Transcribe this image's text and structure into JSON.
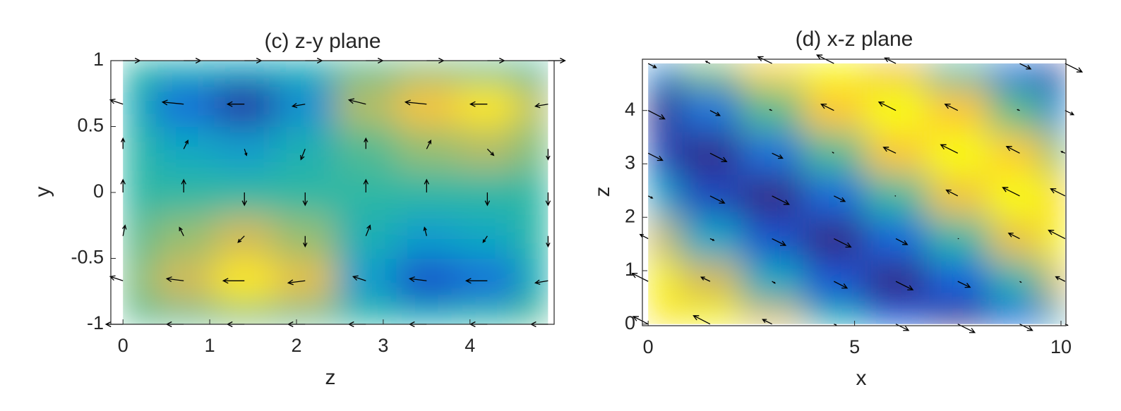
{
  "chart_data": [
    {
      "type": "heatmap",
      "title": "(c) z-y plane",
      "xlabel": "z",
      "ylabel": "y",
      "x": [
        0,
        0.7,
        1.4,
        2.1,
        2.8,
        3.5,
        4.2,
        4.9
      ],
      "y": [
        -1,
        -0.67,
        -0.33,
        0,
        0.33,
        0.67,
        1
      ],
      "z": [
        [
          0.55,
          0.55,
          0.6,
          0.55,
          0.5,
          0.45,
          0.5,
          0.55
        ],
        [
          0.6,
          0.75,
          0.95,
          0.8,
          0.35,
          0.1,
          0.2,
          0.45
        ],
        [
          0.55,
          0.65,
          0.75,
          0.65,
          0.45,
          0.35,
          0.4,
          0.5
        ],
        [
          0.5,
          0.5,
          0.5,
          0.5,
          0.5,
          0.5,
          0.5,
          0.5
        ],
        [
          0.5,
          0.4,
          0.35,
          0.45,
          0.55,
          0.65,
          0.7,
          0.6
        ],
        [
          0.45,
          0.2,
          0.05,
          0.3,
          0.7,
          0.85,
          0.95,
          0.7
        ],
        [
          0.5,
          0.45,
          0.4,
          0.45,
          0.55,
          0.6,
          0.55,
          0.5
        ]
      ],
      "u": [
        [
          -0.4,
          -0.4,
          -0.4,
          -0.4,
          -0.4,
          -0.4,
          -0.4,
          -0.4
        ],
        [
          -0.3,
          -0.4,
          -0.5,
          -0.4,
          -0.3,
          -0.4,
          -0.5,
          -0.3
        ],
        [
          0.05,
          -0.1,
          -0.15,
          0,
          0.1,
          -0.05,
          -0.1,
          0
        ],
        [
          0,
          0,
          0,
          0,
          0,
          0,
          0,
          0
        ],
        [
          0,
          0.1,
          0.05,
          -0.1,
          0,
          0.1,
          0.15,
          0
        ],
        [
          -0.3,
          -0.5,
          -0.4,
          -0.3,
          -0.4,
          -0.5,
          -0.4,
          -0.3
        ],
        [
          0.4,
          0.4,
          0.4,
          0.4,
          0.4,
          0.4,
          0.4,
          0.4
        ]
      ],
      "v": [
        [
          0,
          0,
          0,
          0,
          0,
          0,
          0,
          0
        ],
        [
          0.1,
          0.05,
          0,
          -0.05,
          0.1,
          0.05,
          0,
          -0.05
        ],
        [
          0.25,
          0.2,
          -0.15,
          -0.25,
          0.25,
          0.2,
          -0.15,
          -0.25
        ],
        [
          0.3,
          0.3,
          -0.3,
          -0.3,
          0.3,
          0.3,
          -0.3,
          -0.3
        ],
        [
          0.25,
          0.2,
          -0.15,
          -0.25,
          0.25,
          0.2,
          -0.15,
          -0.25
        ],
        [
          0.1,
          0.05,
          0,
          -0.05,
          0.1,
          0.05,
          0,
          -0.05
        ],
        [
          0,
          0,
          0,
          0,
          0,
          0,
          0,
          0
        ]
      ],
      "clim": [
        0,
        1
      ],
      "colormap": [
        "#352a87",
        "#0f5cdd",
        "#1481d6",
        "#06a4ca",
        "#2eb7a4",
        "#87bf77",
        "#d1bb59",
        "#fec832",
        "#f9fb0e"
      ],
      "arrow_color": "#000000",
      "xlim": [
        -0.14,
        4.97
      ],
      "ylim": [
        -1,
        1
      ],
      "xticks": [
        0,
        1,
        2,
        3,
        4
      ],
      "yticks": [
        -1,
        -0.5,
        0,
        0.5,
        1
      ]
    },
    {
      "type": "heatmap",
      "title": "(d) x-z plane",
      "xlabel": "x",
      "ylabel": "z",
      "x": [
        0,
        1.5,
        3,
        4.5,
        6,
        7.5,
        9,
        10.1
      ],
      "y": [
        0,
        0.8,
        1.6,
        2.4,
        3.2,
        4,
        4.88
      ],
      "z": [
        [
          0.94,
          0.99,
          0.78,
          0.44,
          0.13,
          0,
          0.13,
          0.42
        ],
        [
          0.98,
          0.76,
          0.41,
          0.11,
          0,
          0.14,
          0.46,
          0.78
        ],
        [
          0.74,
          0.39,
          0.1,
          0,
          0.16,
          0.49,
          0.82,
          0.99
        ],
        [
          0.37,
          0.08,
          0,
          0.17,
          0.51,
          0.84,
          1.0,
          0.92
        ],
        [
          0.07,
          0.01,
          0.19,
          0.54,
          0.86,
          1.0,
          0.89,
          0.61
        ],
        [
          0.01,
          0.21,
          0.56,
          0.87,
          1,
          0.87,
          0.56,
          0.25
        ],
        [
          0.26,
          0.62,
          0.91,
          1.0,
          0.83,
          0.5,
          0.17,
          0
        ]
      ],
      "u": [
        [
          -0.35,
          -0.39,
          -0.22,
          0.05,
          0.3,
          0.4,
          0.3,
          0.06
        ],
        [
          -0.38,
          -0.21,
          0.07,
          0.31,
          0.4,
          0.29,
          0.03,
          -0.22
        ],
        [
          -0.19,
          0.09,
          0.32,
          0.4,
          0.27,
          0.01,
          -0.26,
          -0.39
        ],
        [
          0.1,
          0.34,
          0.4,
          0.26,
          -0.01,
          -0.27,
          -0.4,
          -0.34
        ],
        [
          0.34,
          0.39,
          0.25,
          -0.03,
          -0.29,
          -0.4,
          -0.31,
          -0.09
        ],
        [
          0.39,
          0.23,
          -0.05,
          -0.3,
          -0.4,
          -0.3,
          -0.05,
          0.2
        ],
        [
          0.19,
          -0.1,
          -0.33,
          -0.4,
          -0.26,
          0,
          0.26,
          0.4
        ]
      ],
      "v": [
        [
          0.18,
          0.2,
          0.11,
          -0.02,
          -0.15,
          -0.2,
          -0.15,
          -0.03
        ],
        [
          0.19,
          0.1,
          -0.04,
          -0.16,
          -0.2,
          -0.14,
          -0.02,
          0.11
        ],
        [
          0.1,
          -0.04,
          -0.16,
          -0.2,
          -0.14,
          0,
          0.13,
          0.2
        ],
        [
          -0.05,
          -0.17,
          -0.2,
          -0.13,
          0,
          0.14,
          0.2,
          0.17
        ],
        [
          -0.17,
          -0.2,
          -0.12,
          0.02,
          0.14,
          0.2,
          0.16,
          0.04
        ],
        [
          -0.2,
          -0.12,
          0.02,
          0.15,
          0.2,
          0.15,
          0.02,
          -0.1
        ],
        [
          -0.1,
          0.05,
          0.16,
          0.2,
          0.13,
          0,
          -0.13,
          -0.2
        ]
      ],
      "clim": [
        0,
        1
      ],
      "colormap": [
        "#352a87",
        "#0f5cdd",
        "#1481d6",
        "#06a4ca",
        "#2eb7a4",
        "#87bf77",
        "#d1bb59",
        "#fec832",
        "#f9fb0e"
      ],
      "arrow_color": "#000000",
      "xlim": [
        -0.14,
        10.12
      ],
      "ylim": [
        -0.03,
        4.96
      ],
      "xticks": [
        0,
        5,
        10
      ],
      "yticks": [
        0,
        1,
        2,
        3,
        4
      ]
    }
  ]
}
